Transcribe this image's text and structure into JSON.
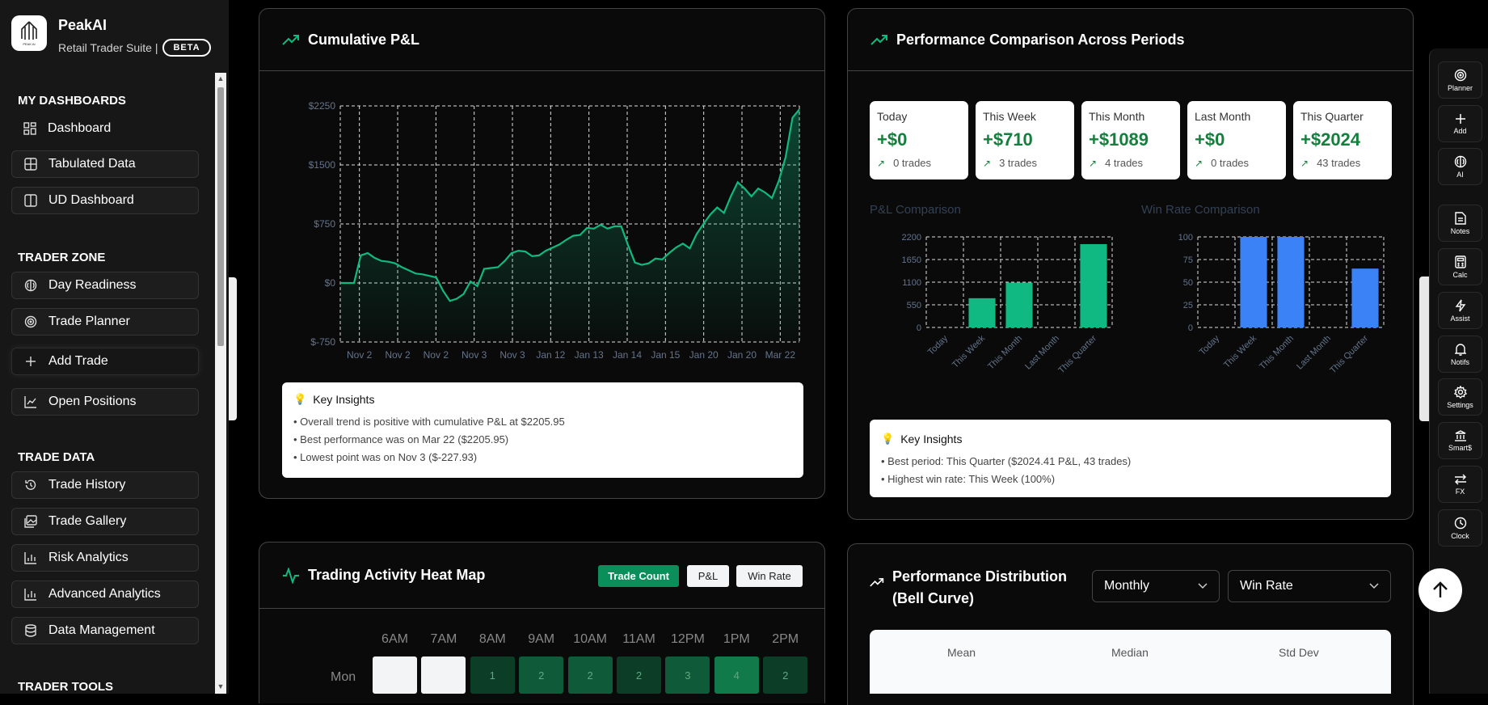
{
  "app": {
    "name": "PeakAI",
    "subtitle": "Retail Trader Suite |",
    "badge": "BETA"
  },
  "sidebar": {
    "sections": [
      {
        "title": "MY DASHBOARDS",
        "items": [
          "Dashboard",
          "Tabulated Data",
          "UD Dashboard"
        ]
      },
      {
        "title": "TRADER ZONE",
        "items": [
          "Day Readiness",
          "Trade Planner",
          "Add Trade",
          "Open Positions"
        ]
      },
      {
        "title": "TRADE DATA",
        "items": [
          "Trade History",
          "Trade Gallery",
          "Risk Analytics",
          "Advanced Analytics",
          "Data Management"
        ]
      },
      {
        "title": "TRADER TOOLS",
        "items": []
      }
    ]
  },
  "cumulative": {
    "title": "Cumulative P&L",
    "insights_title": "Key Insights",
    "insights": [
      "• Overall trend is positive with cumulative P&L at $2205.95",
      "• Best performance was on Mar 22 ($2205.95)",
      "• Lowest point was on Nov 3 ($-227.93)"
    ]
  },
  "comparison": {
    "title": "Performance Comparison Across Periods",
    "periods": [
      {
        "label": "Today",
        "value": "+$0",
        "trades": "0 trades"
      },
      {
        "label": "This Week",
        "value": "+$710",
        "trades": "3 trades"
      },
      {
        "label": "This Month",
        "value": "+$1089",
        "trades": "4 trades"
      },
      {
        "label": "Last Month",
        "value": "+$0",
        "trades": "0 trades"
      },
      {
        "label": "This Quarter",
        "value": "+$2024",
        "trades": "43 trades"
      }
    ],
    "pnl_title": "P&L Comparison",
    "winrate_title": "Win Rate Comparison",
    "insights_title": "Key Insights",
    "insights": [
      "• Best period: This Quarter ($2024.41 P&L, 43 trades)",
      "• Highest win rate: This Week (100%)"
    ]
  },
  "heatmap": {
    "title": "Trading Activity Heat Map",
    "toggles": [
      "Trade Count",
      "P&L",
      "Win Rate"
    ],
    "hours": [
      "6AM",
      "7AM",
      "8AM",
      "9AM",
      "10AM",
      "11AM",
      "12PM",
      "1PM",
      "2PM"
    ],
    "days": [
      "Mon"
    ],
    "mon_values": [
      "",
      "",
      "1",
      "2",
      "2",
      "2",
      "3",
      "4",
      "2"
    ]
  },
  "distribution": {
    "title_line1": "Performance Distribution",
    "title_line2": "(Bell Curve)",
    "period_select": "Monthly",
    "metric_select": "Win Rate",
    "stats": [
      "Mean",
      "Median",
      "Std Dev"
    ]
  },
  "rightbar": {
    "items": [
      {
        "label": "Planner",
        "icon": "target-icon"
      },
      {
        "label": "Add",
        "icon": "plus-icon"
      },
      {
        "label": "AI",
        "icon": "brain-icon"
      },
      {
        "label": "Notes",
        "icon": "notes-icon"
      },
      {
        "label": "Calc",
        "icon": "calculator-icon"
      },
      {
        "label": "Assist",
        "icon": "bolt-icon"
      },
      {
        "label": "Notifs",
        "icon": "bell-icon"
      },
      {
        "label": "Settings",
        "icon": "gear-icon"
      },
      {
        "label": "Smart$",
        "icon": "money-icon"
      },
      {
        "label": "FX",
        "icon": "exchange-icon"
      },
      {
        "label": "Clock",
        "icon": "clock-icon"
      }
    ]
  },
  "colors": {
    "green": "#10b981",
    "blue": "#3b82f6",
    "dark_green": "#0a8f5b"
  },
  "chart_data": [
    {
      "type": "area",
      "title": "Cumulative P&L",
      "x_tick_labels": [
        "Nov 2",
        "Nov 2",
        "Nov 2",
        "Nov 3",
        "Nov 3",
        "Jan 12",
        "Jan 13",
        "Jan 14",
        "Jan 15",
        "Jan 20",
        "Jan 20",
        "Mar 22"
      ],
      "y_tick_labels": [
        "$-750",
        "$0",
        "$750",
        "$1500",
        "$2250"
      ],
      "ylim": [
        -750,
        2250
      ],
      "values": [
        0,
        0,
        0,
        350,
        380,
        320,
        280,
        270,
        250,
        200,
        160,
        120,
        110,
        90,
        70,
        -100,
        -228,
        -200,
        -140,
        20,
        -40,
        180,
        190,
        200,
        280,
        380,
        410,
        400,
        340,
        350,
        410,
        450,
        490,
        550,
        600,
        610,
        700,
        690,
        740,
        690,
        720,
        720,
        480,
        260,
        230,
        250,
        310,
        300,
        380,
        450,
        500,
        440,
        620,
        750,
        870,
        960,
        890,
        1100,
        1280,
        1200,
        1100,
        1200,
        1150,
        1080,
        1300,
        1600,
        2100,
        2206
      ],
      "grid": true,
      "color": "#10b981"
    },
    {
      "type": "bar",
      "title": "P&L Comparison",
      "categories": [
        "Today",
        "This Week",
        "This Month",
        "Last Month",
        "This Quarter"
      ],
      "values": [
        0,
        710,
        1089,
        0,
        2024
      ],
      "ylim": [
        0,
        2200
      ],
      "y_tick_labels": [
        "0",
        "550",
        "1100",
        "1650",
        "2200"
      ],
      "color": "#10b981"
    },
    {
      "type": "bar",
      "title": "Win Rate Comparison",
      "categories": [
        "Today",
        "This Week",
        "This Month",
        "Last Month",
        "This Quarter"
      ],
      "values": [
        0,
        100,
        100,
        0,
        65
      ],
      "ylim": [
        0,
        100
      ],
      "y_tick_labels": [
        "0",
        "25",
        "50",
        "75",
        "100"
      ],
      "color": "#3b82f6"
    }
  ]
}
